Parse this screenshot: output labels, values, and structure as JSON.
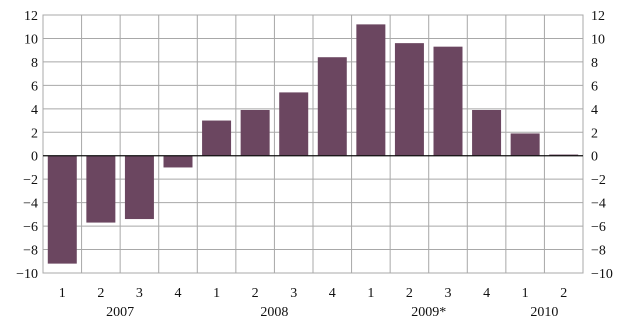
{
  "chart_data": {
    "type": "bar",
    "quarters": [
      "1",
      "2",
      "3",
      "4",
      "1",
      "2",
      "3",
      "4",
      "1",
      "2",
      "3",
      "4",
      "1",
      "2"
    ],
    "years": [
      {
        "label": "2007",
        "span": [
          0,
          3
        ]
      },
      {
        "label": "2008",
        "span": [
          4,
          7
        ]
      },
      {
        "label": "2009*",
        "span": [
          8,
          11
        ]
      },
      {
        "label": "2010",
        "span": [
          12,
          13
        ]
      }
    ],
    "values": [
      -9.2,
      -5.7,
      -5.4,
      -1.0,
      3.0,
      3.9,
      5.4,
      8.4,
      11.2,
      9.6,
      9.3,
      3.9,
      1.9,
      0.1
    ],
    "ylim": [
      -10,
      12
    ],
    "yticks": [
      -10,
      -8,
      -6,
      -4,
      -2,
      0,
      2,
      4,
      6,
      8,
      10,
      12
    ],
    "ytick_labels": [
      "−10",
      "−8",
      "−6",
      "−4",
      "−2",
      "0",
      "2",
      "4",
      "6",
      "8",
      "10",
      "12"
    ],
    "grid": true,
    "bar_color": "#6b4660",
    "grid_color": "#a8a8a8"
  }
}
